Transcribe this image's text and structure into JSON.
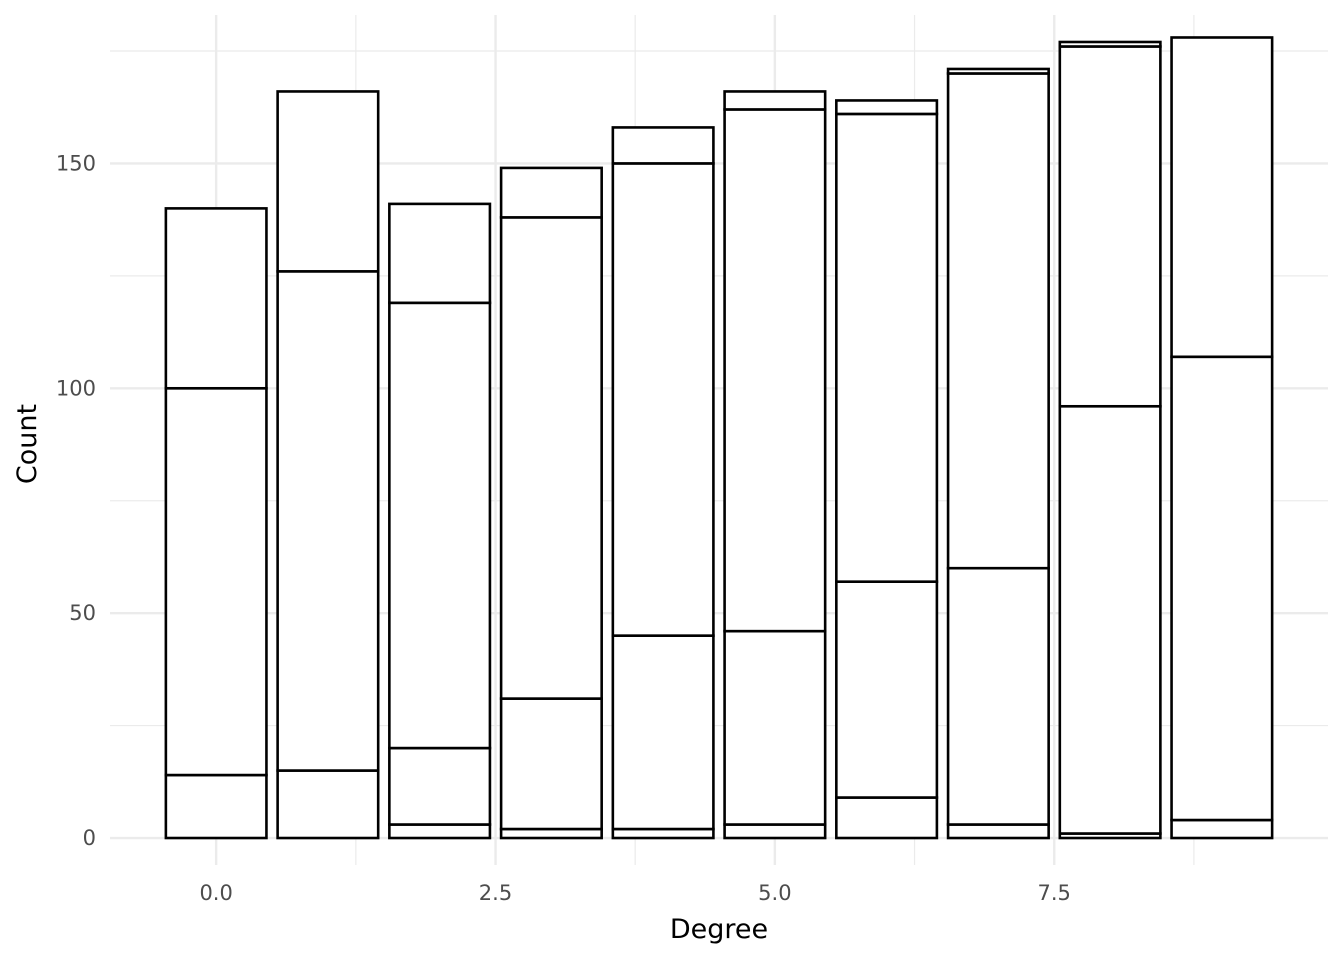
{
  "chart_data": {
    "type": "bar",
    "stacked": true,
    "title": "",
    "xlabel": "Degree",
    "ylabel": "Count",
    "x": [
      0,
      1,
      2,
      3,
      4,
      5,
      6,
      7,
      8,
      9
    ],
    "bar_width": 0.9,
    "xlim": [
      -0.95,
      9.95
    ],
    "ylim": [
      -6,
      183
    ],
    "x_ticks": [
      0.0,
      2.5,
      5.0,
      7.5
    ],
    "x_tick_labels": [
      "0.0",
      "2.5",
      "5.0",
      "7.5"
    ],
    "y_ticks": [
      0,
      50,
      100,
      150
    ],
    "y_tick_labels": [
      "0",
      "50",
      "100",
      "150"
    ],
    "grid": true,
    "legend": "none",
    "fill_color": "#ffffff",
    "outline_color": "#000000",
    "grid_color": "#ebebeb",
    "stack_boundaries": [
      [
        0,
        14,
        100,
        140
      ],
      [
        0,
        15,
        126,
        166
      ],
      [
        0,
        3,
        20,
        119,
        141
      ],
      [
        0,
        2,
        31,
        138,
        149
      ],
      [
        0,
        2,
        45,
        150,
        158
      ],
      [
        0,
        3,
        46,
        162,
        166
      ],
      [
        0,
        9,
        57,
        161,
        164
      ],
      [
        0,
        3,
        60,
        170,
        171
      ],
      [
        0,
        1,
        96,
        176,
        177
      ],
      [
        0,
        4,
        107,
        178
      ]
    ]
  }
}
